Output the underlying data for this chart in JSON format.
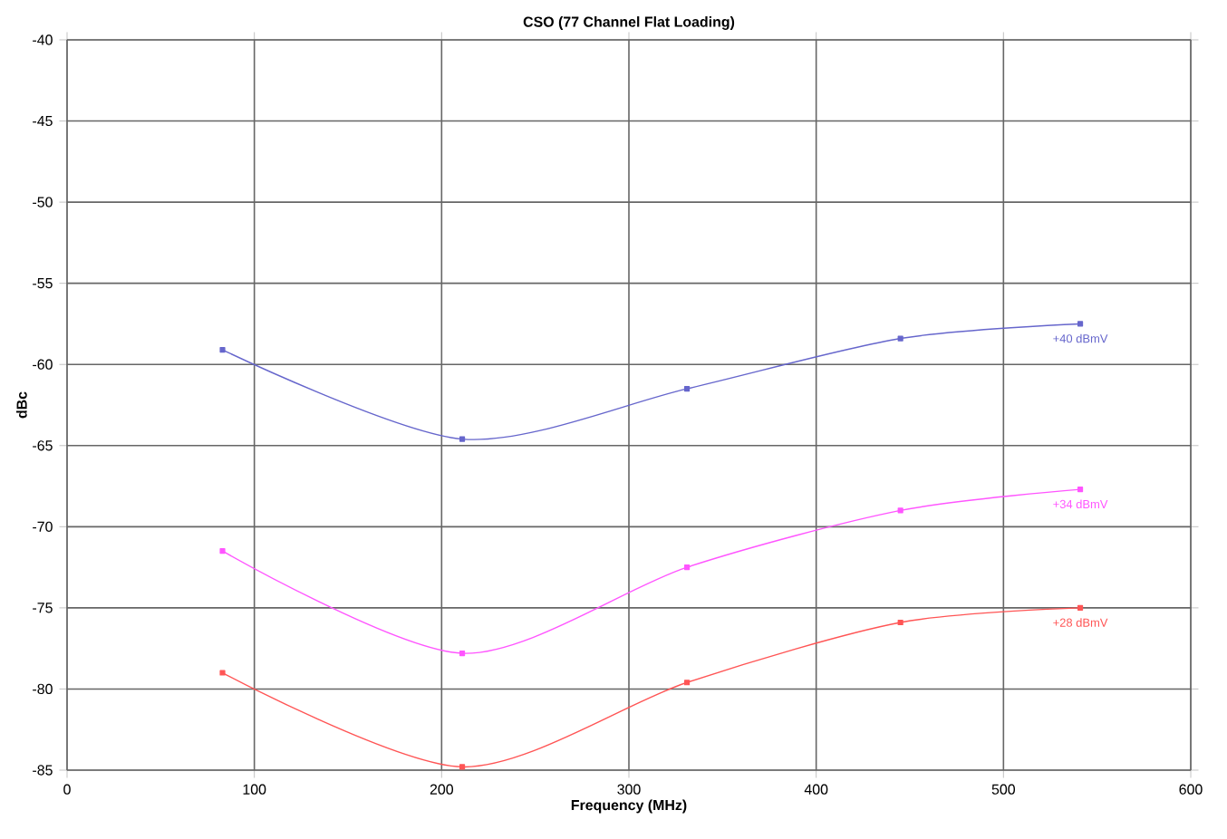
{
  "chart_data": {
    "type": "line",
    "title": "CSO (77 Channel Flat Loading)",
    "xlabel": "Frequency (MHz)",
    "ylabel": "dBc",
    "xlim": [
      0,
      600
    ],
    "xticks": [
      0,
      100,
      200,
      300,
      400,
      500,
      600
    ],
    "ylim": [
      -85,
      -40
    ],
    "yticks": [
      -85,
      -80,
      -75,
      -70,
      -65,
      -60,
      -55,
      -50,
      -45,
      -40
    ],
    "grid": true,
    "marker": "square",
    "line_style": "solid",
    "series": [
      {
        "name": "+40 dBmV",
        "color": "#6666cc",
        "x": [
          83,
          211,
          331,
          445,
          541
        ],
        "values": [
          -59.1,
          -64.6,
          -61.5,
          -58.4,
          -57.5
        ]
      },
      {
        "name": "+34 dBmV",
        "color": "#ff55ff",
        "x": [
          83,
          211,
          331,
          445,
          541
        ],
        "values": [
          -71.5,
          -77.8,
          -72.5,
          -69.0,
          -67.7
        ]
      },
      {
        "name": "+28 dBmV",
        "color": "#ff5555",
        "x": [
          83,
          211,
          331,
          445,
          541
        ],
        "values": [
          -79.0,
          -84.8,
          -79.6,
          -75.9,
          -75.0
        ]
      }
    ]
  }
}
